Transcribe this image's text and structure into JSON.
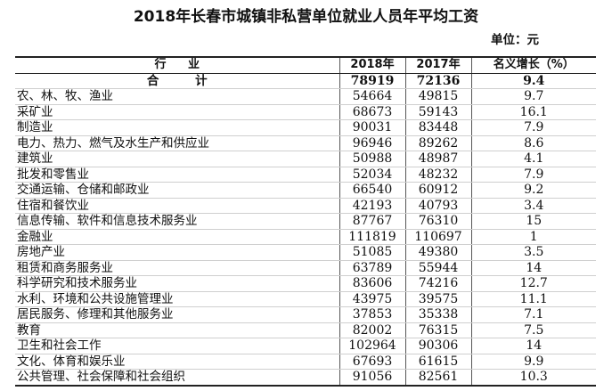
{
  "title": "2018年长春市城镇非私营单位就业人员年平均工资",
  "unit": "单位：元",
  "table": {
    "headers": [
      "行 业",
      "2018年",
      "2017年",
      "名义增长（%）"
    ],
    "total": [
      "合 计",
      "78919",
      "72136",
      "9.4"
    ],
    "rows": [
      [
        "农、林、牧、渔业",
        "54664",
        "49815",
        "9.7"
      ],
      [
        "采矿业",
        "68673",
        "59143",
        "16.1"
      ],
      [
        "制造业",
        "90031",
        "83448",
        "7.9"
      ],
      [
        "电力、热力、燃气及水生产和供应业",
        "96946",
        "89262",
        "8.6"
      ],
      [
        "建筑业",
        "50988",
        "48987",
        "4.1"
      ],
      [
        "批发和零售业",
        "52034",
        "48232",
        "7.9"
      ],
      [
        "交通运输、仓储和邮政业",
        "66540",
        "60912",
        "9.2"
      ],
      [
        "住宿和餐饮业",
        "42193",
        "40793",
        "3.4"
      ],
      [
        "信息传输、软件和信息技术服务业",
        "87767",
        "76310",
        "15"
      ],
      [
        "金融业",
        "111819",
        "110697",
        "1"
      ],
      [
        "房地产业",
        "51085",
        "49380",
        "3.5"
      ],
      [
        "租赁和商务服务业",
        "63789",
        "55944",
        "14"
      ],
      [
        "科学研究和技术服务业",
        "83606",
        "74216",
        "12.7"
      ],
      [
        "水利、环境和公共设施管理业",
        "43975",
        "39575",
        "11.1"
      ],
      [
        "居民服务、修理和其他服务业",
        "37853",
        "35338",
        "7.1"
      ],
      [
        "教育",
        "82002",
        "76315",
        "7.5"
      ],
      [
        "卫生和社会工作",
        "102964",
        "90306",
        "14"
      ],
      [
        "文化、体育和娱乐业",
        "67693",
        "61615",
        "9.9"
      ],
      [
        "公共管理、社会保障和社会组织",
        "91056",
        "82561",
        "10.3"
      ]
    ]
  }
}
